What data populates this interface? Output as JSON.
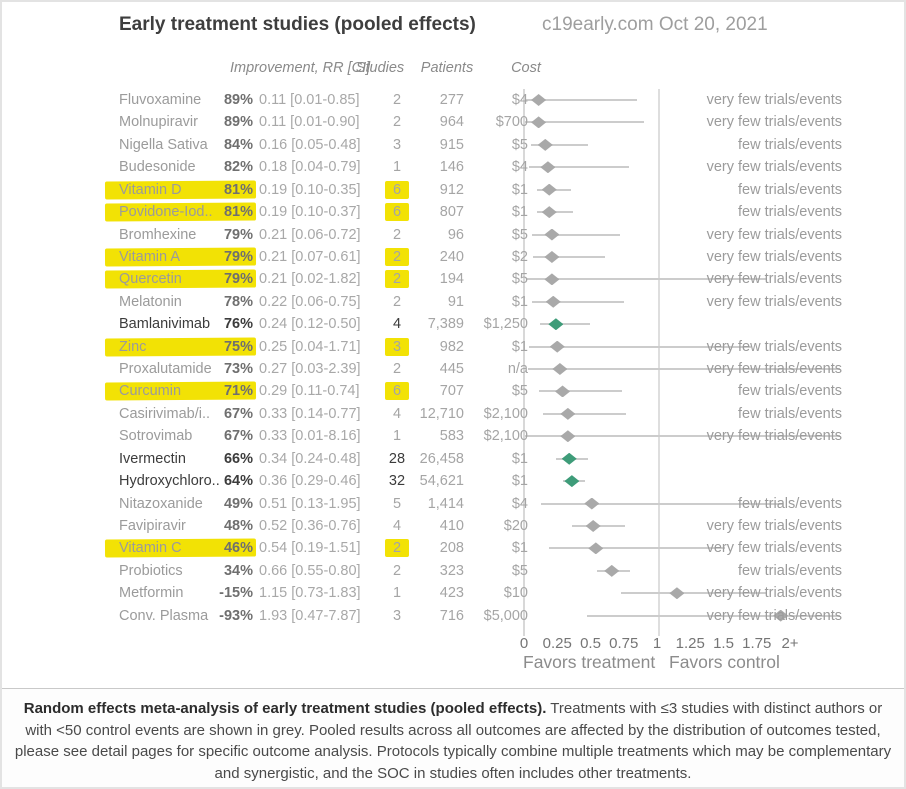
{
  "header": {
    "title": "Early treatment studies (pooled effects)",
    "source_date": "c19early.com Oct 20, 2021"
  },
  "table_headers": {
    "improvement": "Improvement, RR [CI]",
    "studies": "Studies",
    "patients": "Patients",
    "cost": "Cost"
  },
  "axis": {
    "tick_labels": [
      "0",
      "0.25",
      "0.5",
      "0.75",
      "1",
      "1.25",
      "1.5",
      "1.75",
      "2+"
    ],
    "tick_values": [
      0,
      0.25,
      0.5,
      0.75,
      1,
      1.25,
      1.5,
      1.75,
      2
    ],
    "favors_treatment": "Favors treatment",
    "favors_control": "Favors control"
  },
  "colors": {
    "highlight_yellow": "#f2e205",
    "diamond_grey": "#a9a9a9",
    "diamond_green": "#3e9c79",
    "grey_text": "#9b9b9b",
    "dark_text": "#3c3c3c"
  },
  "chart_data": {
    "type": "forest",
    "title": "Early treatment studies (pooled effects)",
    "x_axis_range": [
      0,
      2
    ],
    "reference_line": 1,
    "rows": [
      {
        "name": "Fluvoxamine",
        "improvement": "89%",
        "rr_ci": "0.11 [0.01-0.85]",
        "rr": 0.11,
        "ci_low": 0.01,
        "ci_high": 0.85,
        "studies": "2",
        "patients": "277",
        "cost": "$4",
        "note": "very few trials/events",
        "highlighted": false,
        "dark": false
      },
      {
        "name": "Molnupiravir",
        "improvement": "89%",
        "rr_ci": "0.11 [0.01-0.90]",
        "rr": 0.11,
        "ci_low": 0.01,
        "ci_high": 0.9,
        "studies": "2",
        "patients": "964",
        "cost": "$700",
        "note": "very few trials/events",
        "highlighted": false,
        "dark": false
      },
      {
        "name": "Nigella Sativa",
        "improvement": "84%",
        "rr_ci": "0.16 [0.05-0.48]",
        "rr": 0.16,
        "ci_low": 0.05,
        "ci_high": 0.48,
        "studies": "3",
        "patients": "915",
        "cost": "$5",
        "note": "few trials/events",
        "highlighted": false,
        "dark": false
      },
      {
        "name": "Budesonide",
        "improvement": "82%",
        "rr_ci": "0.18 [0.04-0.79]",
        "rr": 0.18,
        "ci_low": 0.04,
        "ci_high": 0.79,
        "studies": "1",
        "patients": "146",
        "cost": "$4",
        "note": "very few trials/events",
        "highlighted": false,
        "dark": false
      },
      {
        "name": "Vitamin D",
        "improvement": "81%",
        "rr_ci": "0.19 [0.10-0.35]",
        "rr": 0.19,
        "ci_low": 0.1,
        "ci_high": 0.35,
        "studies": "6",
        "patients": "912",
        "cost": "$1",
        "note": "few trials/events",
        "highlighted": true,
        "dark": false
      },
      {
        "name": "Povidone-Iod..",
        "improvement": "81%",
        "rr_ci": "0.19 [0.10-0.37]",
        "rr": 0.19,
        "ci_low": 0.1,
        "ci_high": 0.37,
        "studies": "6",
        "patients": "807",
        "cost": "$1",
        "note": "few trials/events",
        "highlighted": true,
        "dark": false
      },
      {
        "name": "Bromhexine",
        "improvement": "79%",
        "rr_ci": "0.21 [0.06-0.72]",
        "rr": 0.21,
        "ci_low": 0.06,
        "ci_high": 0.72,
        "studies": "2",
        "patients": "96",
        "cost": "$5",
        "note": "very few trials/events",
        "highlighted": false,
        "dark": false
      },
      {
        "name": "Vitamin A",
        "improvement": "79%",
        "rr_ci": "0.21 [0.07-0.61]",
        "rr": 0.21,
        "ci_low": 0.07,
        "ci_high": 0.61,
        "studies": "2",
        "patients": "240",
        "cost": "$2",
        "note": "very few trials/events",
        "highlighted": true,
        "dark": false
      },
      {
        "name": "Quercetin",
        "improvement": "79%",
        "rr_ci": "0.21 [0.02-1.82]",
        "rr": 0.21,
        "ci_low": 0.02,
        "ci_high": 1.82,
        "studies": "2",
        "patients": "194",
        "cost": "$5",
        "note": "very few trials/events",
        "highlighted": true,
        "dark": false
      },
      {
        "name": "Melatonin",
        "improvement": "78%",
        "rr_ci": "0.22 [0.06-0.75]",
        "rr": 0.22,
        "ci_low": 0.06,
        "ci_high": 0.75,
        "studies": "2",
        "patients": "91",
        "cost": "$1",
        "note": "very few trials/events",
        "highlighted": false,
        "dark": false
      },
      {
        "name": "Bamlanivimab",
        "improvement": "76%",
        "rr_ci": "0.24 [0.12-0.50]",
        "rr": 0.24,
        "ci_low": 0.12,
        "ci_high": 0.5,
        "studies": "4",
        "patients": "7,389",
        "cost": "$1,250",
        "note": "",
        "highlighted": false,
        "dark": true
      },
      {
        "name": "Zinc",
        "improvement": "75%",
        "rr_ci": "0.25 [0.04-1.71]",
        "rr": 0.25,
        "ci_low": 0.04,
        "ci_high": 1.71,
        "studies": "3",
        "patients": "982",
        "cost": "$1",
        "note": "very few trials/events",
        "highlighted": true,
        "dark": false
      },
      {
        "name": "Proxalutamide",
        "improvement": "73%",
        "rr_ci": "0.27 [0.03-2.39]",
        "rr": 0.27,
        "ci_low": 0.03,
        "ci_high": 2.39,
        "studies": "2",
        "patients": "445",
        "cost": "n/a",
        "note": "very few trials/events",
        "highlighted": false,
        "dark": false
      },
      {
        "name": "Curcumin",
        "improvement": "71%",
        "rr_ci": "0.29 [0.11-0.74]",
        "rr": 0.29,
        "ci_low": 0.11,
        "ci_high": 0.74,
        "studies": "6",
        "patients": "707",
        "cost": "$5",
        "note": "few trials/events",
        "highlighted": true,
        "dark": false
      },
      {
        "name": "Casirivimab/i..",
        "improvement": "67%",
        "rr_ci": "0.33 [0.14-0.77]",
        "rr": 0.33,
        "ci_low": 0.14,
        "ci_high": 0.77,
        "studies": "4",
        "patients": "12,710",
        "cost": "$2,100",
        "note": "few trials/events",
        "highlighted": false,
        "dark": false
      },
      {
        "name": "Sotrovimab",
        "improvement": "67%",
        "rr_ci": "0.33 [0.01-8.16]",
        "rr": 0.33,
        "ci_low": 0.01,
        "ci_high": 8.16,
        "studies": "1",
        "patients": "583",
        "cost": "$2,100",
        "note": "very few trials/events",
        "highlighted": false,
        "dark": false
      },
      {
        "name": "Ivermectin",
        "improvement": "66%",
        "rr_ci": "0.34 [0.24-0.48]",
        "rr": 0.34,
        "ci_low": 0.24,
        "ci_high": 0.48,
        "studies": "28",
        "patients": "26,458",
        "cost": "$1",
        "note": "",
        "highlighted": false,
        "dark": true
      },
      {
        "name": "Hydroxychloro..",
        "improvement": "64%",
        "rr_ci": "0.36 [0.29-0.46]",
        "rr": 0.36,
        "ci_low": 0.29,
        "ci_high": 0.46,
        "studies": "32",
        "patients": "54,621",
        "cost": "$1",
        "note": "",
        "highlighted": false,
        "dark": true
      },
      {
        "name": "Nitazoxanide",
        "improvement": "49%",
        "rr_ci": "0.51 [0.13-1.95]",
        "rr": 0.51,
        "ci_low": 0.13,
        "ci_high": 1.95,
        "studies": "5",
        "patients": "1,414",
        "cost": "$4",
        "note": "few trials/events",
        "highlighted": false,
        "dark": false
      },
      {
        "name": "Favipiravir",
        "improvement": "48%",
        "rr_ci": "0.52 [0.36-0.76]",
        "rr": 0.52,
        "ci_low": 0.36,
        "ci_high": 0.76,
        "studies": "4",
        "patients": "410",
        "cost": "$20",
        "note": "very few trials/events",
        "highlighted": false,
        "dark": false
      },
      {
        "name": "Vitamin C",
        "improvement": "46%",
        "rr_ci": "0.54 [0.19-1.51]",
        "rr": 0.54,
        "ci_low": 0.19,
        "ci_high": 1.51,
        "studies": "2",
        "patients": "208",
        "cost": "$1",
        "note": "very few trials/events",
        "highlighted": true,
        "dark": false
      },
      {
        "name": "Probiotics",
        "improvement": "34%",
        "rr_ci": "0.66 [0.55-0.80]",
        "rr": 0.66,
        "ci_low": 0.55,
        "ci_high": 0.8,
        "studies": "2",
        "patients": "323",
        "cost": "$5",
        "note": "few trials/events",
        "highlighted": false,
        "dark": false
      },
      {
        "name": "Metformin",
        "improvement": "-15%",
        "rr_ci": "1.15 [0.73-1.83]",
        "rr": 1.15,
        "ci_low": 0.73,
        "ci_high": 1.83,
        "studies": "1",
        "patients": "423",
        "cost": "$10",
        "note": "very few trials/events",
        "highlighted": false,
        "dark": false
      },
      {
        "name": "Conv. Plasma",
        "improvement": "-93%",
        "rr_ci": "1.93 [0.47-7.87]",
        "rr": 1.93,
        "ci_low": 0.47,
        "ci_high": 7.87,
        "studies": "3",
        "patients": "716",
        "cost": "$5,000",
        "note": "very few trials/events",
        "highlighted": false,
        "dark": false
      }
    ]
  },
  "footer": {
    "bold": "Random effects meta-analysis of early treatment studies (pooled effects).",
    "text": " Treatments with ≤3 studies with distinct authors or with <50 control events are shown in grey. Pooled results across all outcomes are affected by the distribution of outcomes tested, please see detail pages for specific outcome analysis. Protocols typically combine multiple treatments which may be complementary and synergistic, and the SOC in studies often includes other treatments."
  }
}
